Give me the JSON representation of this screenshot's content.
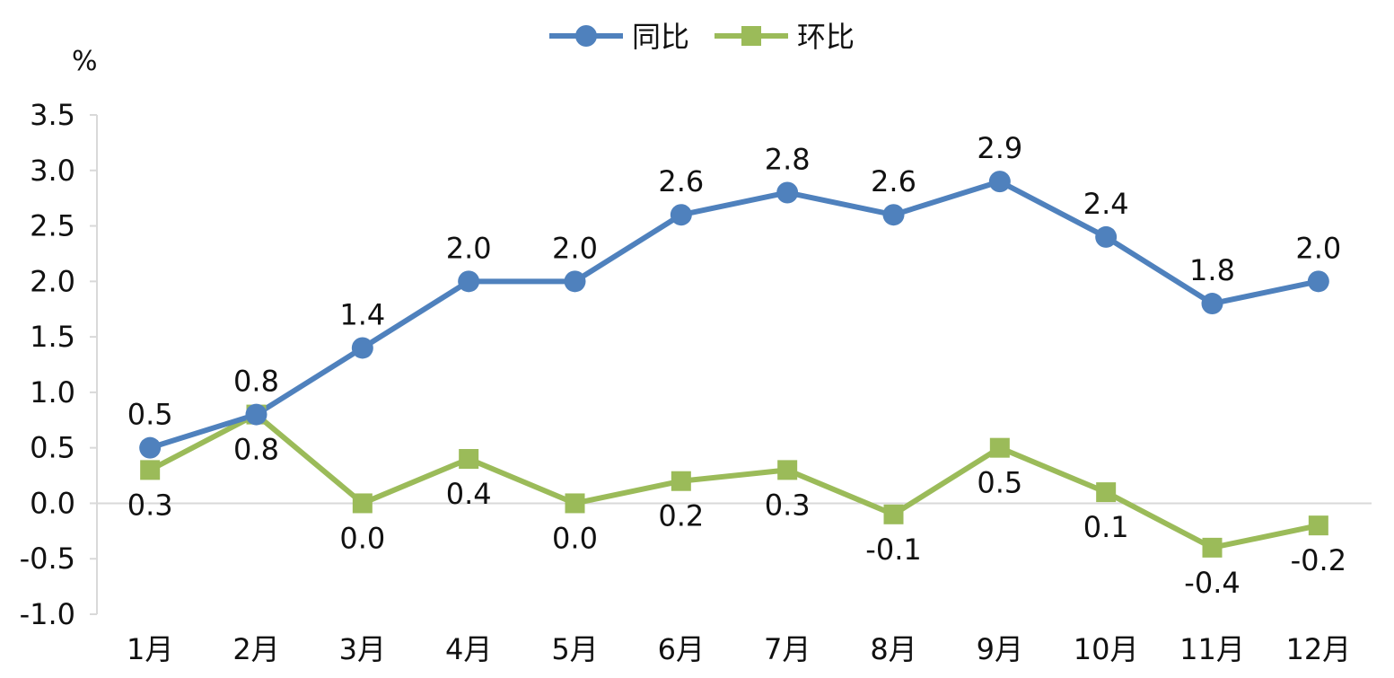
{
  "chart_data": {
    "type": "line",
    "categories": [
      "1月",
      "2月",
      "3月",
      "4月",
      "5月",
      "6月",
      "7月",
      "8月",
      "9月",
      "10月",
      "11月",
      "12月"
    ],
    "series": [
      {
        "name": "同比",
        "values": [
          0.5,
          0.8,
          1.4,
          2.0,
          2.0,
          2.6,
          2.8,
          2.6,
          2.9,
          2.4,
          1.8,
          2.0
        ],
        "labels": [
          "0.5",
          "0.8",
          "1.4",
          "2.0",
          "2.0",
          "2.6",
          "2.8",
          "2.6",
          "2.9",
          "2.4",
          "1.8",
          "2.0"
        ],
        "color": "#4F81BD",
        "marker": "circle"
      },
      {
        "name": "环比",
        "values": [
          0.3,
          0.8,
          0.0,
          0.4,
          0.0,
          0.2,
          0.3,
          -0.1,
          0.5,
          0.1,
          -0.4,
          -0.2
        ],
        "labels": [
          "0.3",
          "0.8",
          "0.0",
          "0.4",
          "0.0",
          "0.2",
          "0.3",
          "-0.1",
          "0.5",
          "0.1",
          "-0.4",
          "-0.2"
        ],
        "color": "#9BBB59",
        "marker": "square"
      }
    ],
    "ylabel": "%",
    "ylim": [
      -1.0,
      3.5
    ],
    "yticks": [
      "-1.0",
      "-0.5",
      "0.0",
      "0.5",
      "1.0",
      "1.5",
      "2.0",
      "2.5",
      "3.0",
      "3.5"
    ],
    "ytick_values": [
      -1.0,
      -0.5,
      0.0,
      0.5,
      1.0,
      1.5,
      2.0,
      2.5,
      3.0,
      3.5
    ],
    "grid": false,
    "legend_position": "top-center",
    "axis_color": "#D9D9D9"
  }
}
